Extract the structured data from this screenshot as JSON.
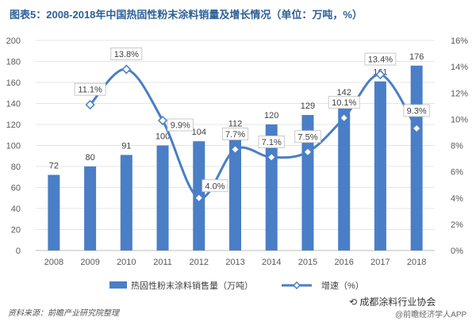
{
  "title": "图表5：2008-2018年中国热固性粉末涂料销量及增长情况（单位：万吨，%）",
  "source": "资料来源：前瞻产业研究院整理",
  "watermark_account": "成都涂料行业协会",
  "watermark_app": "@前瞻经济学人APP",
  "colors": {
    "bar": "#4a7ec6",
    "line": "#4a7ec6",
    "title": "#2d5f96"
  },
  "chart_data": {
    "type": "bar+line",
    "categories": [
      "2008",
      "2009",
      "2010",
      "2011",
      "2012",
      "2013",
      "2014",
      "2015",
      "2016",
      "2017",
      "2018"
    ],
    "series": [
      {
        "name": "热固性粉末涂料销售量（万吨）",
        "type": "bar",
        "axis": "left",
        "values": [
          72,
          80,
          91,
          100,
          104,
          112,
          120,
          129,
          142,
          161,
          176
        ],
        "labels": [
          "72",
          "80",
          "91",
          "100",
          "104",
          "112",
          "120",
          "129",
          "142",
          "161",
          "176"
        ]
      },
      {
        "name": "增速（%）",
        "type": "line",
        "axis": "right",
        "values": [
          null,
          11.1,
          13.8,
          9.9,
          4.0,
          7.7,
          7.1,
          7.5,
          10.1,
          13.4,
          9.3
        ],
        "labels": [
          "",
          "11.1%",
          "13.8%",
          "9.9%",
          "4.0%",
          "7.7%",
          "7.1%",
          "7.5%",
          "10.1%",
          "13.4%",
          "9.3%"
        ]
      }
    ],
    "y_left": {
      "min": 0,
      "max": 200,
      "ticks": [
        "0",
        "20",
        "40",
        "60",
        "80",
        "100",
        "120",
        "140",
        "160",
        "180",
        "200"
      ]
    },
    "y_right": {
      "min": 0,
      "max": 16,
      "ticks": [
        "0%",
        "2%",
        "4%",
        "6%",
        "8%",
        "10%",
        "12%",
        "14%",
        "16%"
      ]
    },
    "legend": [
      "热固性粉末涂料销售量（万吨）",
      "增速（%）"
    ],
    "legend_position": "bottom"
  }
}
